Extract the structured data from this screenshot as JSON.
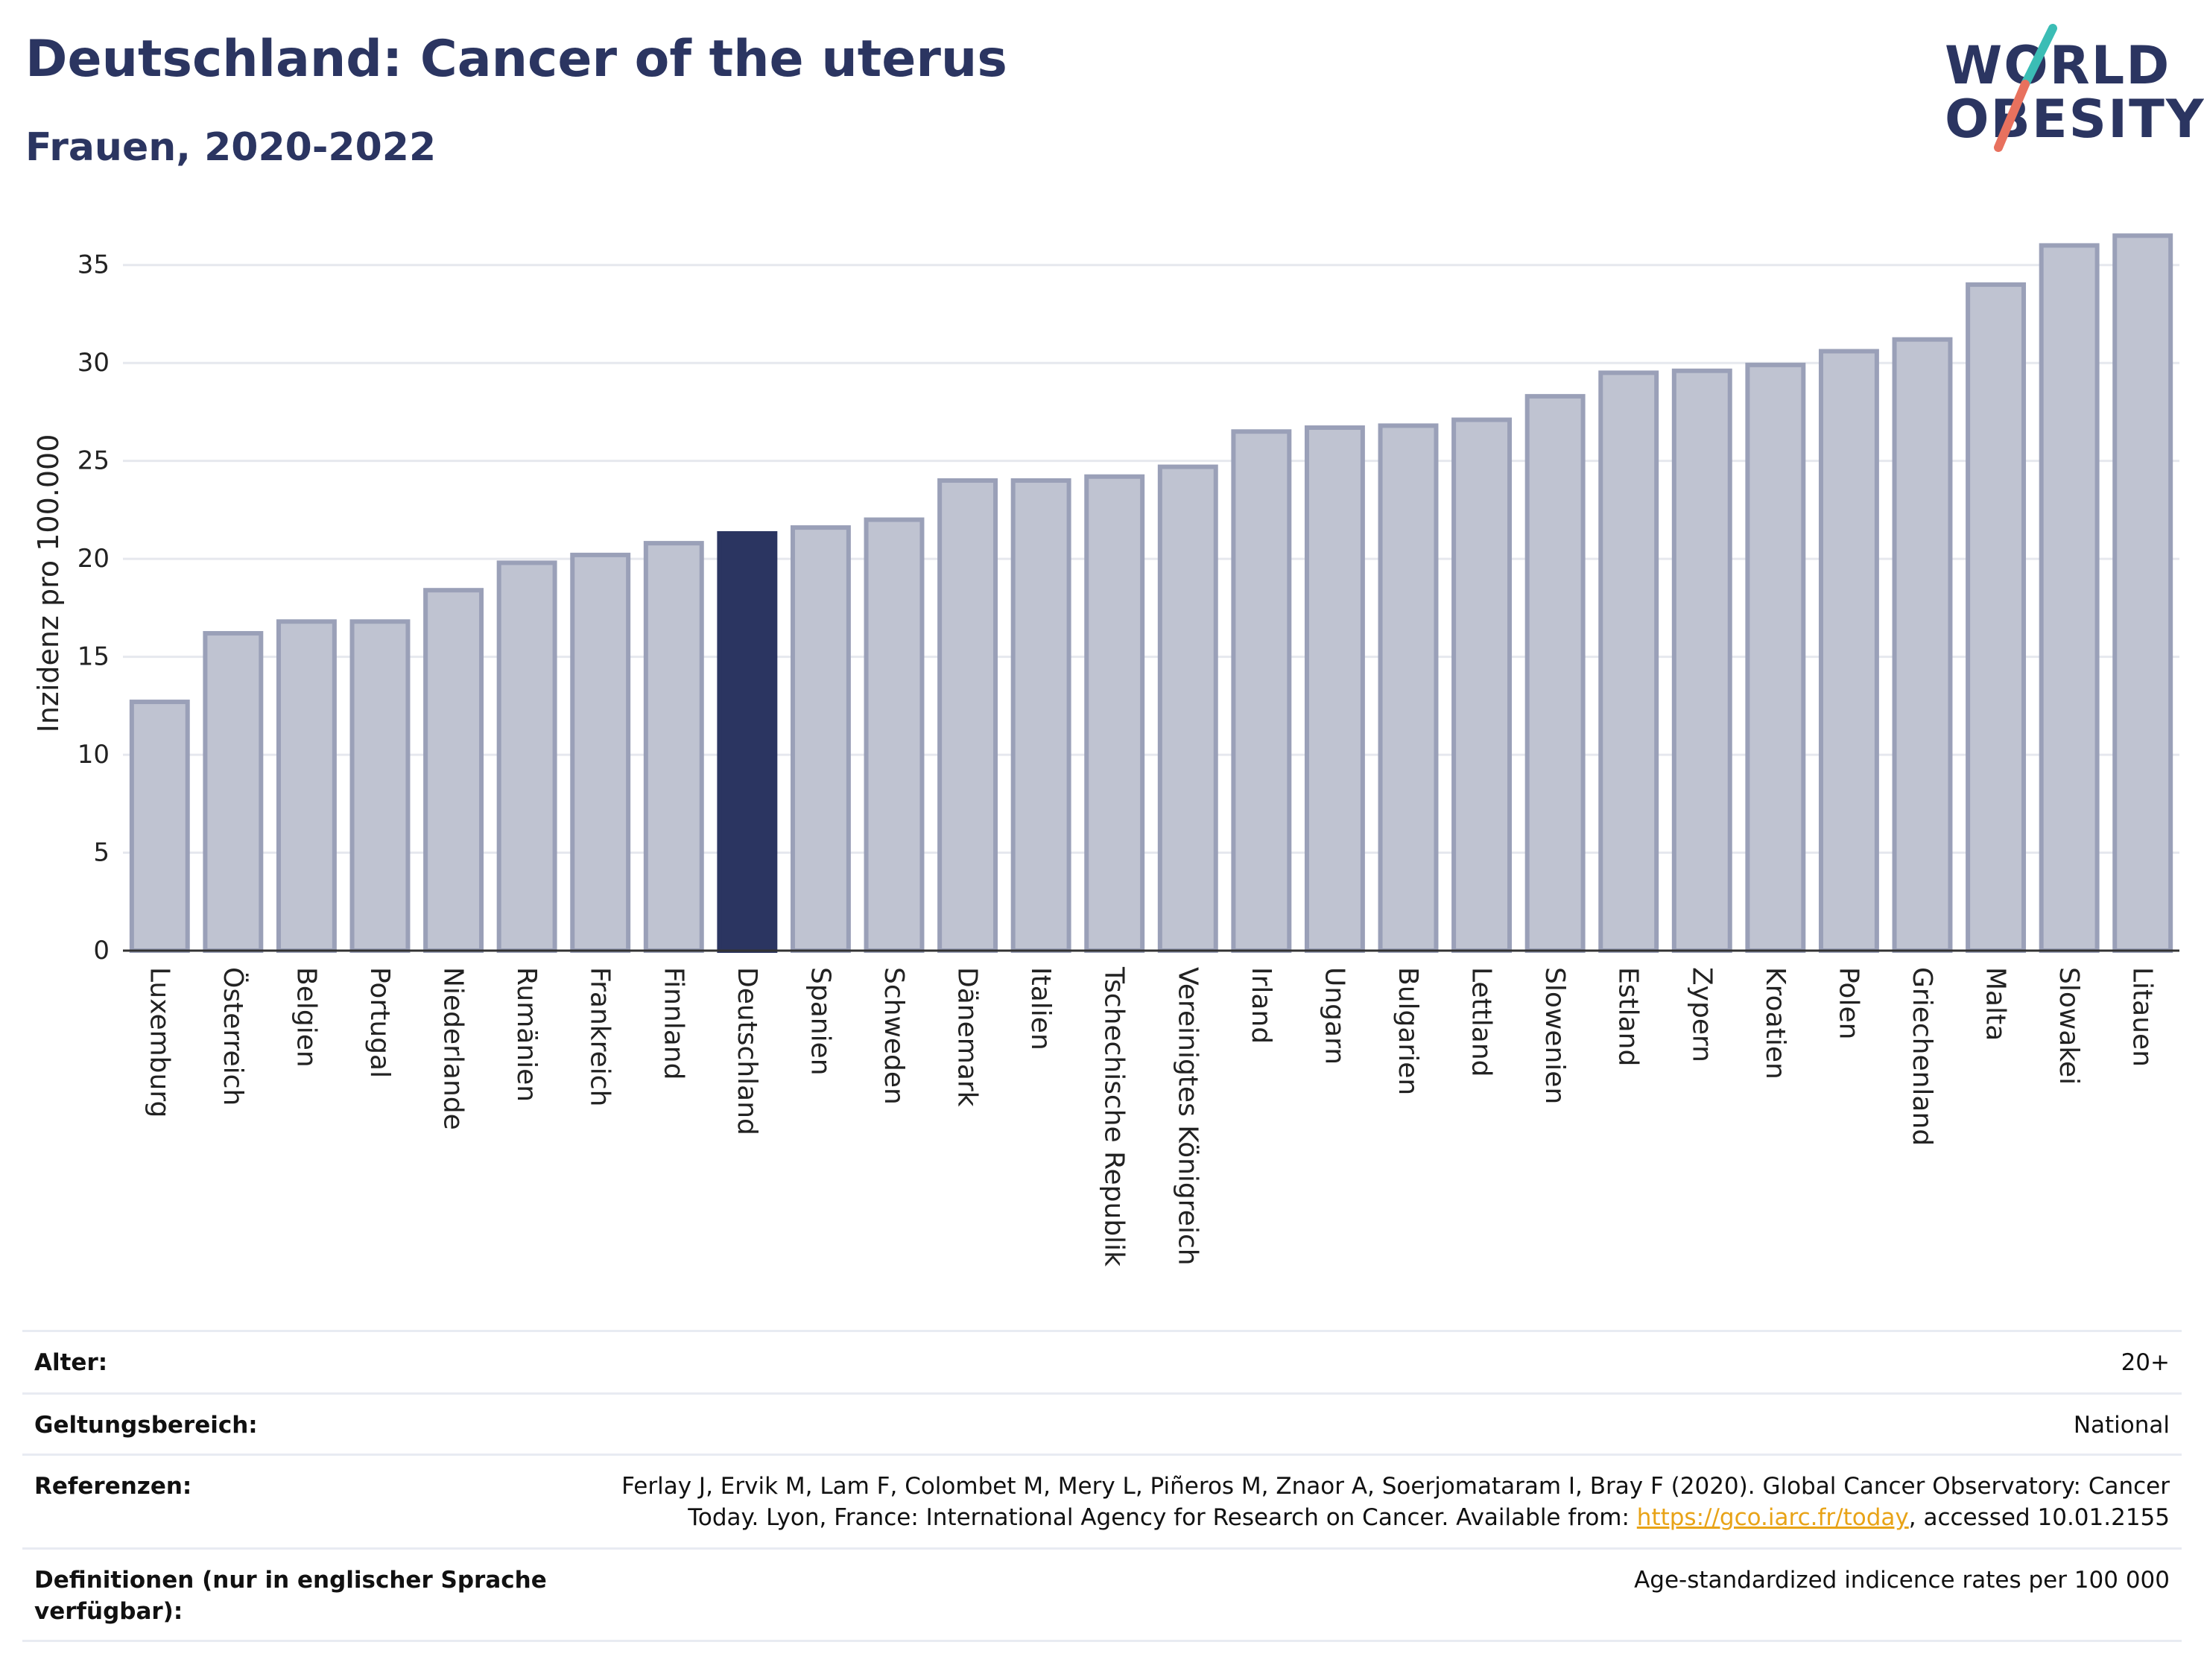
{
  "header": {
    "title": "Deutschland: Cancer of the uterus",
    "subtitle": "Frauen, 2020-2022"
  },
  "logo": {
    "line1": "WORLD",
    "line2": "OBESITY",
    "accent_teal": "#3bbdb5",
    "accent_red": "#e8715e"
  },
  "colors": {
    "bar_default": "#bfc3d1",
    "bar_stroke": "#9aa0b8",
    "bar_highlight": "#2b3561"
  },
  "chart_data": {
    "type": "bar",
    "ylabel": "Inzidenz pro 100.000",
    "ylim": [
      0,
      37.5
    ],
    "yticks": [
      0,
      5,
      10,
      15,
      20,
      25,
      30,
      35
    ],
    "grid": true,
    "highlight": "Deutschland",
    "categories": [
      "Luxemburg",
      "Österreich",
      "Belgien",
      "Portugal",
      "Niederlande",
      "Rumänien",
      "Frankreich",
      "Finnland",
      "Deutschland",
      "Spanien",
      "Schweden",
      "Dänemark",
      "Italien",
      "Tschechische Republik",
      "Vereinigtes Königreich",
      "Irland",
      "Ungarn",
      "Bulgarien",
      "Lettland",
      "Slowenien",
      "Estland",
      "Zypern",
      "Kroatien",
      "Polen",
      "Griechenland",
      "Malta",
      "Slowakei",
      "Litauen"
    ],
    "values": [
      12.7,
      16.2,
      16.8,
      16.8,
      18.4,
      19.8,
      20.2,
      20.8,
      21.3,
      21.6,
      22.0,
      24.0,
      24.0,
      24.2,
      24.7,
      26.5,
      26.7,
      26.8,
      27.1,
      28.3,
      29.5,
      29.6,
      29.9,
      30.6,
      31.2,
      34.0,
      36.0,
      36.5
    ]
  },
  "meta": {
    "age_label": "Alter:",
    "age_value": "20+",
    "scope_label": "Geltungsbereich:",
    "scope_value": "National",
    "ref_label": "Referenzen:",
    "ref_line1": "Ferlay J, Ervik M, Lam F, Colombet M, Mery L, Piñeros M, Znaor A, Soerjomataram I, Bray F (2020). Global Cancer Observatory: Cancer",
    "ref_line2_pre": "Today. Lyon, France: International Agency for Research on Cancer. Available from: ",
    "ref_link": "https://gco.iarc.fr/today",
    "ref_line2_post": ", accessed 10.01.2155",
    "def_label": "Definitionen (nur in englischer Sprache verfügbar):",
    "def_value": "Age-standardized indicence rates per 100 000"
  }
}
